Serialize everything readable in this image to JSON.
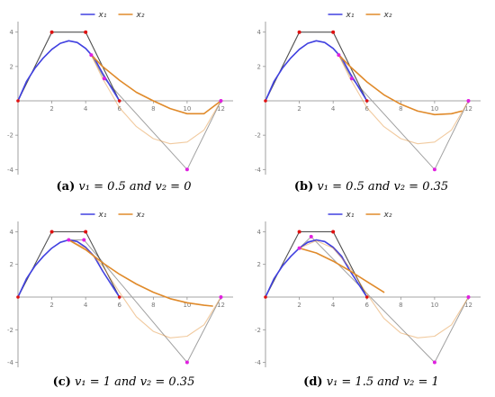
{
  "colors": {
    "x1": "#4040e0",
    "x2": "#e08a2a",
    "control": "#a0a0a0",
    "control_dark": "#505050",
    "pt_red": "#e01010",
    "pt_magenta": "#e020e0"
  },
  "chart_data": [
    {
      "type": "line",
      "legend": [
        "x₁",
        "x₂"
      ],
      "legend_placement": "top-center",
      "xlim": [
        0,
        12.4
      ],
      "ylim": [
        -4.3,
        4.3
      ],
      "xticks": [
        2,
        4,
        6,
        8,
        10,
        12
      ],
      "yticks": [
        -4,
        -2,
        2,
        4
      ],
      "control_polygon_1": [
        [
          0,
          0
        ],
        [
          2,
          4
        ],
        [
          4,
          4
        ],
        [
          6,
          0
        ]
      ],
      "control_polygon_2": [
        [
          4.33,
          2.67
        ],
        [
          5.1,
          1.3
        ],
        [
          10,
          -4
        ],
        [
          12,
          0
        ]
      ],
      "red_points": [
        [
          2,
          4
        ],
        [
          4,
          4
        ]
      ],
      "magenta_points": [
        [
          4.33,
          2.67
        ],
        [
          5.1,
          1.3
        ],
        [
          10,
          -4
        ],
        [
          12,
          0
        ]
      ],
      "series": [
        {
          "name": "x₁",
          "values": [
            [
              0,
              0
            ],
            [
              0.5,
              1.12
            ],
            [
              1,
              1.9
            ],
            [
              1.5,
              2.5
            ],
            [
              2,
              3.0
            ],
            [
              2.5,
              3.35
            ],
            [
              3,
              3.5
            ],
            [
              3.5,
              3.4
            ],
            [
              4,
              3.05
            ],
            [
              4.5,
              2.5
            ],
            [
              5,
              1.6
            ],
            [
              5.5,
              0.8
            ],
            [
              6,
              0
            ]
          ]
        },
        {
          "name": "x₂ (faint)",
          "values": [
            [
              4.33,
              2.67
            ],
            [
              5,
              1.3
            ],
            [
              6,
              -0.4
            ],
            [
              7,
              -1.5
            ],
            [
              8,
              -2.2
            ],
            [
              9,
              -2.5
            ],
            [
              10,
              -2.4
            ],
            [
              11,
              -1.7
            ],
            [
              12,
              0
            ]
          ]
        },
        {
          "name": "x₂",
          "values": [
            [
              4.33,
              2.67
            ],
            [
              5,
              2.0
            ],
            [
              6,
              1.2
            ],
            [
              7,
              0.5
            ],
            [
              8,
              0
            ],
            [
              9,
              -0.45
            ],
            [
              10,
              -0.75
            ],
            [
              11,
              -0.75
            ],
            [
              12,
              0
            ]
          ]
        }
      ]
    },
    {
      "type": "line",
      "legend": [
        "x₁",
        "x₂"
      ],
      "legend_placement": "top-center",
      "xlim": [
        0,
        12.4
      ],
      "ylim": [
        -4.3,
        4.3
      ],
      "xticks": [
        2,
        4,
        6,
        8,
        10,
        12
      ],
      "yticks": [
        -4,
        -2,
        2,
        4
      ],
      "control_polygon_1": [
        [
          0,
          0
        ],
        [
          2,
          4
        ],
        [
          4,
          4
        ],
        [
          6,
          0
        ]
      ],
      "control_polygon_2": [
        [
          4.33,
          2.67
        ],
        [
          5.1,
          1.3
        ],
        [
          10,
          -4
        ],
        [
          12,
          0
        ]
      ],
      "red_points": [
        [
          2,
          4
        ],
        [
          4,
          4
        ]
      ],
      "magenta_points": [
        [
          4.33,
          2.67
        ],
        [
          5.1,
          1.3
        ],
        [
          10,
          -4
        ],
        [
          12,
          0
        ]
      ],
      "series": [
        {
          "name": "x₁",
          "values": [
            [
              0,
              0
            ],
            [
              0.5,
              1.12
            ],
            [
              1,
              1.9
            ],
            [
              1.5,
              2.5
            ],
            [
              2,
              3.0
            ],
            [
              2.5,
              3.35
            ],
            [
              3,
              3.5
            ],
            [
              3.5,
              3.4
            ],
            [
              4,
              3.05
            ],
            [
              4.5,
              2.5
            ],
            [
              5,
              1.6
            ],
            [
              5.5,
              0.8
            ],
            [
              6,
              0
            ]
          ]
        },
        {
          "name": "x₂ (faint)",
          "values": [
            [
              4.33,
              2.67
            ],
            [
              5,
              1.3
            ],
            [
              6,
              -0.4
            ],
            [
              7,
              -1.5
            ],
            [
              8,
              -2.2
            ],
            [
              9,
              -2.5
            ],
            [
              10,
              -2.4
            ],
            [
              11,
              -1.7
            ],
            [
              12,
              0
            ]
          ]
        },
        {
          "name": "x₂",
          "values": [
            [
              4.33,
              2.67
            ],
            [
              5,
              2.0
            ],
            [
              6,
              1.1
            ],
            [
              7,
              0.35
            ],
            [
              8,
              -0.2
            ],
            [
              9,
              -0.6
            ],
            [
              10,
              -0.8
            ],
            [
              11,
              -0.75
            ],
            [
              11.6,
              -0.6
            ]
          ]
        }
      ]
    },
    {
      "type": "line",
      "legend": [
        "x₁",
        "x₂"
      ],
      "legend_placement": "top-center",
      "xlim": [
        0,
        12.4
      ],
      "ylim": [
        -4.3,
        4.3
      ],
      "xticks": [
        2,
        4,
        6,
        8,
        10,
        12
      ],
      "yticks": [
        -4,
        -2,
        2,
        4
      ],
      "control_polygon_1": [
        [
          0,
          0
        ],
        [
          2,
          4
        ],
        [
          4,
          4
        ],
        [
          6,
          0
        ]
      ],
      "control_polygon_2": [
        [
          3,
          3.5
        ],
        [
          3.9,
          3.5
        ],
        [
          10,
          -4
        ],
        [
          12,
          0
        ]
      ],
      "red_points": [
        [
          2,
          4
        ],
        [
          4,
          4
        ]
      ],
      "magenta_points": [
        [
          3,
          3.5
        ],
        [
          3.9,
          3.5
        ],
        [
          10,
          -4
        ],
        [
          12,
          0
        ]
      ],
      "series": [
        {
          "name": "x₁",
          "values": [
            [
              0,
              0
            ],
            [
              0.5,
              1.12
            ],
            [
              1,
              1.9
            ],
            [
              1.5,
              2.5
            ],
            [
              2,
              3.0
            ],
            [
              2.5,
              3.35
            ],
            [
              3,
              3.5
            ],
            [
              3.5,
              3.4
            ],
            [
              4,
              3.05
            ],
            [
              4.5,
              2.5
            ],
            [
              5,
              1.6
            ],
            [
              5.5,
              0.8
            ],
            [
              6,
              0
            ]
          ]
        },
        {
          "name": "x₂ (faint)",
          "values": [
            [
              3,
              3.5
            ],
            [
              4,
              3.0
            ],
            [
              5,
              1.9
            ],
            [
              6,
              0.3
            ],
            [
              7,
              -1.2
            ],
            [
              8,
              -2.1
            ],
            [
              9,
              -2.5
            ],
            [
              10,
              -2.4
            ],
            [
              11,
              -1.7
            ],
            [
              12,
              0
            ]
          ]
        },
        {
          "name": "x₂",
          "values": [
            [
              3,
              3.5
            ],
            [
              4,
              2.9
            ],
            [
              5,
              2.1
            ],
            [
              6,
              1.4
            ],
            [
              7,
              0.8
            ],
            [
              8,
              0.3
            ],
            [
              9,
              -0.1
            ],
            [
              10,
              -0.35
            ],
            [
              11,
              -0.5
            ],
            [
              11.5,
              -0.55
            ]
          ]
        }
      ]
    },
    {
      "type": "line",
      "legend": [
        "x₁",
        "x₂"
      ],
      "legend_placement": "top-center",
      "xlim": [
        0,
        12.4
      ],
      "ylim": [
        -4.3,
        4.3
      ],
      "xticks": [
        2,
        4,
        6,
        8,
        10,
        12
      ],
      "yticks": [
        -4,
        -2,
        2,
        4
      ],
      "control_polygon_1": [
        [
          0,
          0
        ],
        [
          2,
          4
        ],
        [
          4,
          4
        ],
        [
          6,
          0
        ]
      ],
      "control_polygon_2": [
        [
          2,
          3
        ],
        [
          2.7,
          3.7
        ],
        [
          10,
          -4
        ],
        [
          12,
          0
        ]
      ],
      "red_points": [
        [
          2,
          4
        ],
        [
          4,
          4
        ]
      ],
      "magenta_points": [
        [
          2,
          3
        ],
        [
          2.7,
          3.7
        ],
        [
          10,
          -4
        ],
        [
          12,
          0
        ]
      ],
      "series": [
        {
          "name": "x₁",
          "values": [
            [
              0,
              0
            ],
            [
              0.5,
              1.12
            ],
            [
              1,
              1.9
            ],
            [
              1.5,
              2.5
            ],
            [
              2,
              3.0
            ],
            [
              2.5,
              3.35
            ],
            [
              3,
              3.5
            ],
            [
              3.5,
              3.4
            ],
            [
              4,
              3.05
            ],
            [
              4.5,
              2.5
            ],
            [
              5,
              1.6
            ],
            [
              5.5,
              0.8
            ],
            [
              6,
              0
            ]
          ]
        },
        {
          "name": "x₁ (faint)",
          "values": [
            [
              2,
              3
            ],
            [
              2.5,
              3.4
            ],
            [
              3,
              3.5
            ],
            [
              3.5,
              3.4
            ],
            [
              4,
              3.0
            ],
            [
              4.5,
              2.4
            ],
            [
              5,
              1.6
            ],
            [
              5.5,
              0.8
            ],
            [
              6,
              0
            ]
          ]
        },
        {
          "name": "x₂ (faint)",
          "values": [
            [
              2,
              3
            ],
            [
              3,
              3.45
            ],
            [
              4,
              3.0
            ],
            [
              5,
              1.8
            ],
            [
              6,
              0.2
            ],
            [
              7,
              -1.3
            ],
            [
              8,
              -2.2
            ],
            [
              9,
              -2.5
            ],
            [
              10,
              -2.4
            ],
            [
              11,
              -1.7
            ],
            [
              12,
              0
            ]
          ]
        },
        {
          "name": "x₂",
          "values": [
            [
              2,
              3
            ],
            [
              3,
              2.7
            ],
            [
              4,
              2.2
            ],
            [
              5,
              1.6
            ],
            [
              6,
              0.95
            ],
            [
              7,
              0.3
            ]
          ]
        }
      ]
    }
  ],
  "captions": [
    {
      "tag": "(a)",
      "text": "v₁ = 0.5 and v₂ = 0"
    },
    {
      "tag": "(b)",
      "text": "v₁ = 0.5 and v₂ = 0.35"
    },
    {
      "tag": "(c)",
      "text": "v₁ = 1 and v₂ = 0.35"
    },
    {
      "tag": "(d)",
      "text": "v₁ = 1.5 and v₂ = 1"
    }
  ]
}
